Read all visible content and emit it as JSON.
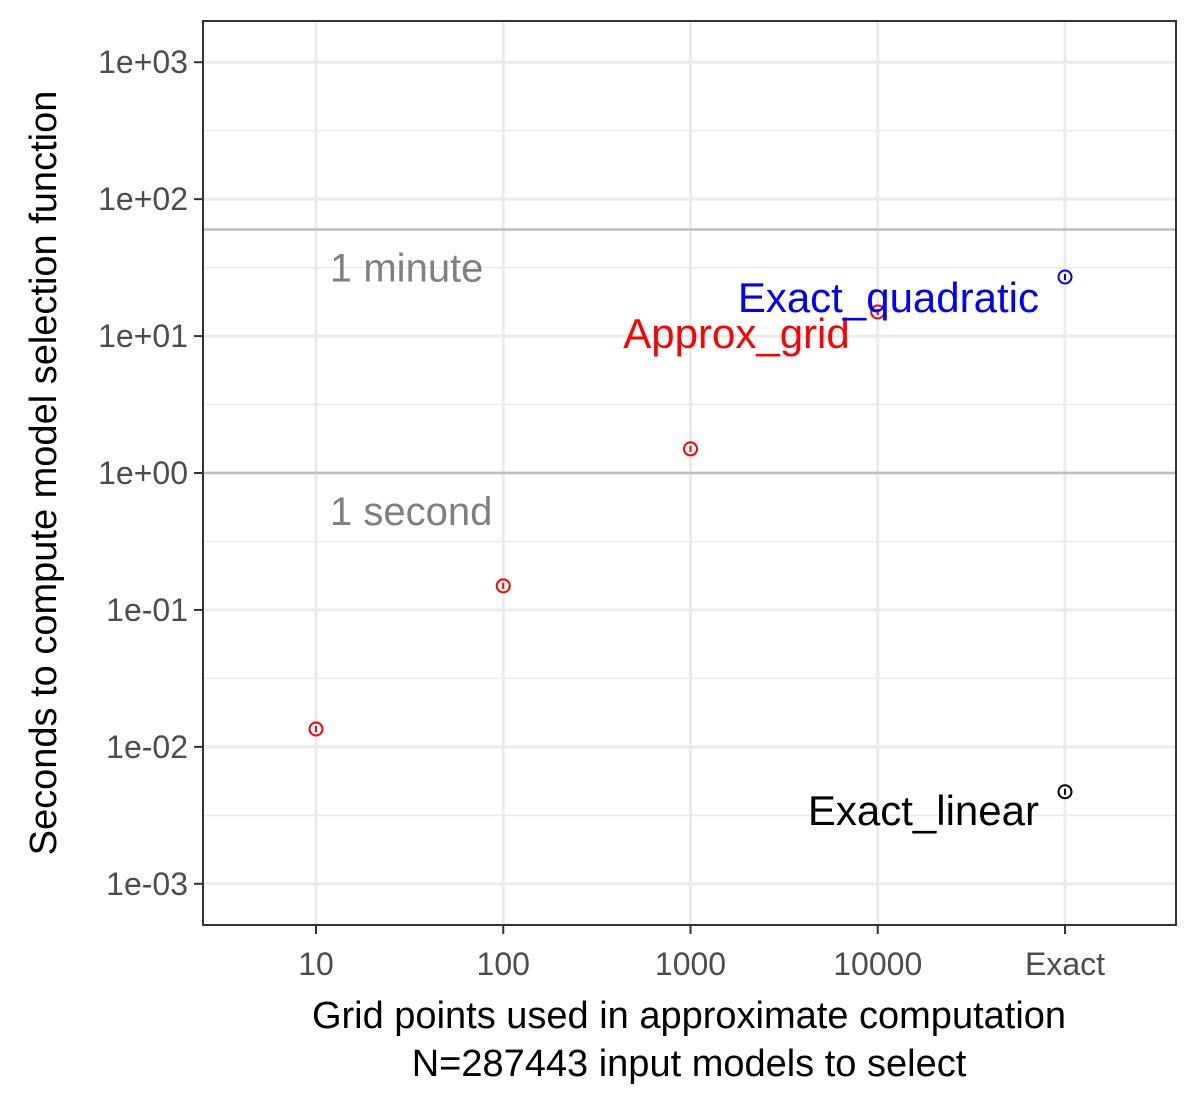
{
  "chart_data": {
    "type": "scatter",
    "xlabel_line1": "Grid points used in approximate computation",
    "xlabel_line2": "N=287443 input models to select",
    "ylabel": "Seconds to compute model selection function",
    "x_categories": [
      "10",
      "100",
      "1000",
      "10000",
      "Exact"
    ],
    "y_scale": "log10",
    "ylim": [
      0.0005,
      2000
    ],
    "y_ticks": [
      {
        "value": 0.001,
        "label": "1e-03"
      },
      {
        "value": 0.01,
        "label": "1e-02"
      },
      {
        "value": 0.1,
        "label": "1e-01"
      },
      {
        "value": 1,
        "label": "1e+00"
      },
      {
        "value": 10,
        "label": "1e+01"
      },
      {
        "value": 100,
        "label": "1e+02"
      },
      {
        "value": 1000,
        "label": "1e+03"
      }
    ],
    "reference_lines": [
      {
        "value": 60,
        "label": "1 minute"
      },
      {
        "value": 1,
        "label": "1 second"
      }
    ],
    "series": [
      {
        "name": "Approx_grid",
        "color": "#ff0000",
        "points": [
          {
            "x": "10",
            "y": 0.0135
          },
          {
            "x": "100",
            "y": 0.15
          },
          {
            "x": "1000",
            "y": 1.5
          },
          {
            "x": "10000",
            "y": 15
          }
        ]
      },
      {
        "name": "Exact_quadratic",
        "color": "#0000ff",
        "points": [
          {
            "x": "Exact",
            "y": 27
          }
        ]
      },
      {
        "name": "Exact_linear",
        "color": "#000000",
        "points": [
          {
            "x": "Exact",
            "y": 0.0047
          }
        ]
      }
    ],
    "grid": true,
    "theme": "bw"
  }
}
